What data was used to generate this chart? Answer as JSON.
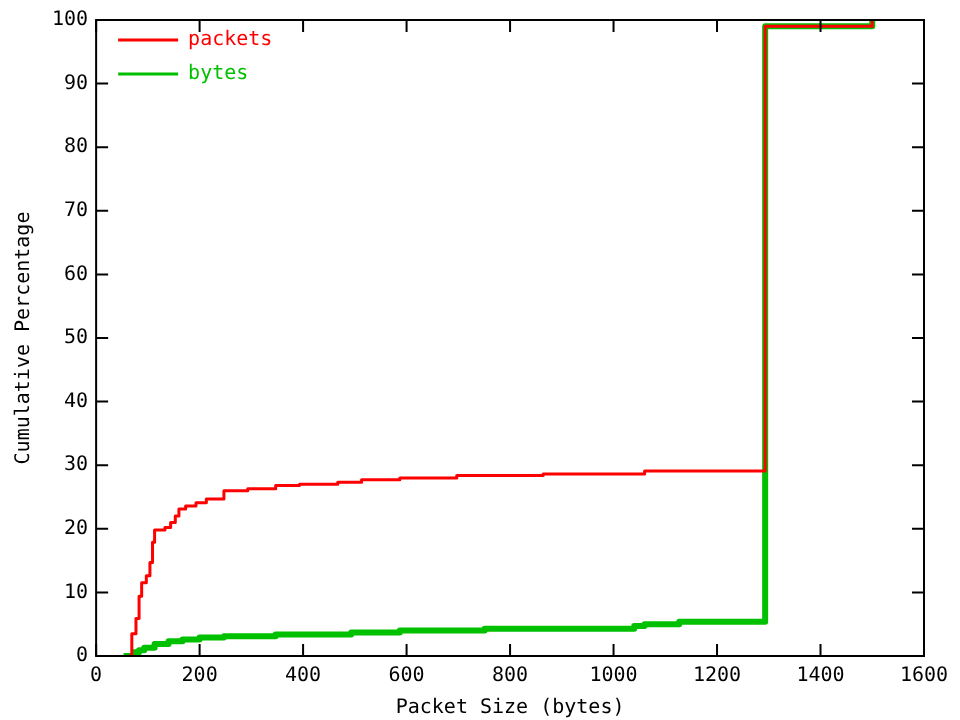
{
  "chart_data": {
    "type": "step",
    "xlabel": "Packet Size (bytes)",
    "ylabel": "Cumulative Percentage",
    "xlim": [
      0,
      1600
    ],
    "ylim": [
      0,
      100
    ],
    "xticks": [
      0,
      200,
      400,
      600,
      800,
      1000,
      1200,
      1400,
      1600
    ],
    "yticks": [
      0,
      10,
      20,
      30,
      40,
      50,
      60,
      70,
      80,
      90,
      100
    ],
    "grid": false,
    "legend": "top left",
    "marker": "none",
    "line_style": "solid",
    "series": [
      {
        "name": "packets",
        "color": "#ff0000",
        "x": [
          63,
          69,
          77,
          83,
          88,
          97,
          104,
          109,
          113,
          133,
          144,
          153,
          160,
          173,
          193,
          213,
          247,
          293,
          347,
          393,
          467,
          513,
          587,
          697,
          864,
          1060,
          1293,
          1500
        ],
        "values": [
          0,
          3.5,
          5.9,
          9.4,
          11.5,
          12.6,
          14.7,
          17.9,
          19.8,
          20.2,
          21,
          22,
          23.1,
          23.6,
          24.1,
          24.7,
          26,
          26.3,
          26.8,
          27,
          27.3,
          27.7,
          28,
          28.4,
          28.6,
          29.1,
          99,
          100
        ]
      },
      {
        "name": "bytes",
        "color": "#00c000",
        "x": [
          53,
          73,
          83,
          93,
          113,
          140,
          167,
          200,
          247,
          347,
          493,
          587,
          751,
          1040,
          1060,
          1127,
          1293,
          1500
        ],
        "values": [
          0,
          0.6,
          0.9,
          1.3,
          1.9,
          2.3,
          2.6,
          2.9,
          3.1,
          3.4,
          3.7,
          4,
          4.3,
          4.7,
          5,
          5.4,
          99,
          100
        ]
      }
    ]
  }
}
